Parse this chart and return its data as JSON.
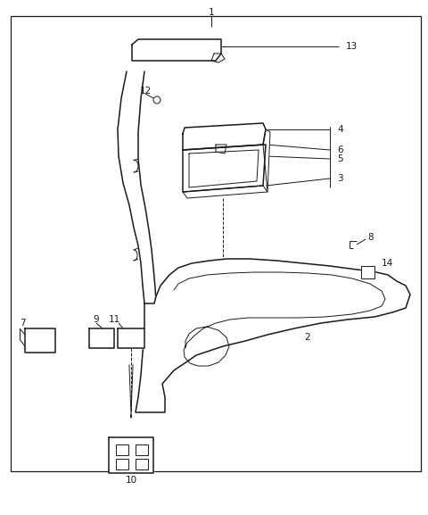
{
  "bg_color": "#ffffff",
  "line_color": "#1a1a1a",
  "border": [
    12,
    18,
    460,
    510
  ],
  "figsize": [
    4.8,
    5.77
  ],
  "dpi": 100
}
